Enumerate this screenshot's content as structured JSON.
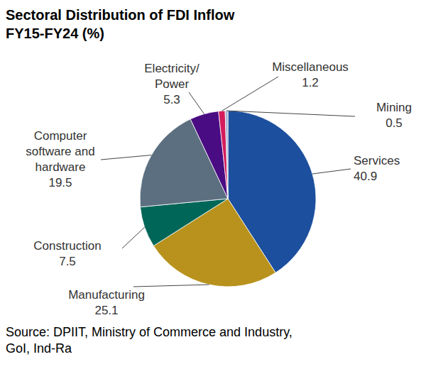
{
  "chart_data": {
    "type": "pie",
    "title": "Sectoral Distribution of FDI Inflow\nFY15-FY24 (%)",
    "categories": [
      "Services",
      "Manufacturing",
      "Construction",
      "Computer\nsoftware and\nhardware",
      "Electricity/\nPower",
      "Miscellaneous",
      "Mining"
    ],
    "values": [
      40.9,
      25.1,
      7.5,
      19.5,
      5.3,
      1.2,
      0.5
    ],
    "colors": [
      "#1c4f9e",
      "#b8921c",
      "#006658",
      "#5b6f80",
      "#4a0c82",
      "#d41c5c",
      "#a9b5d6"
    ],
    "data_labels": true,
    "source": "Source: DPIIT, Ministry of Commerce and Industry,\nGoI, Ind-Ra"
  }
}
